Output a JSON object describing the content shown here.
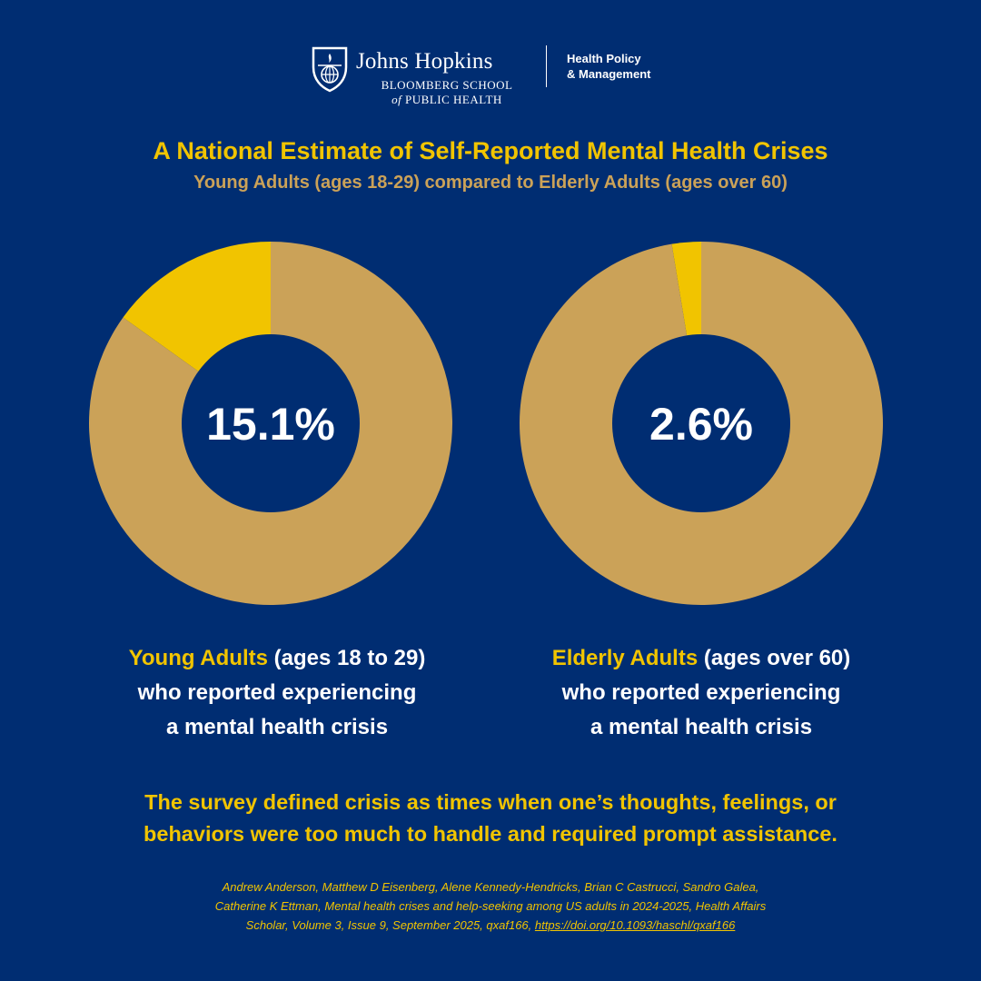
{
  "header": {
    "university": "Johns Hopkins",
    "school_line1": "BLOOMBERG SCHOOL",
    "school_line2_of": "of",
    "school_line2_rest": " PUBLIC HEALTH",
    "dept_line1": "Health Policy",
    "dept_line2": "& Management"
  },
  "title": "A National Estimate of Self-Reported Mental Health Crises",
  "subtitle": "Young Adults (ages 18-29) compared to Elderly Adults (ages over 60)",
  "colors": {
    "background": "#002d72",
    "crisis_slice": "#f1c400",
    "remainder_slice": "#cba258",
    "center_text": "#ffffff"
  },
  "chart_data": [
    {
      "type": "pie",
      "donut": true,
      "slices": [
        {
          "value": 15.1,
          "color": "#f1c400"
        },
        {
          "value": 84.9,
          "color": "#cba258"
        }
      ],
      "center_label": "15.1%"
    },
    {
      "type": "pie",
      "donut": true,
      "slices": [
        {
          "value": 2.6,
          "color": "#f1c400"
        },
        {
          "value": 97.4,
          "color": "#cba258"
        }
      ],
      "center_label": "2.6%"
    }
  ],
  "captions": [
    {
      "highlight": "Young Adults",
      "rest1": " (ages 18 to 29)",
      "line2": "who reported experiencing",
      "line3": "a mental health crisis"
    },
    {
      "highlight": "Elderly Adults",
      "rest1": " (ages over 60)",
      "line2": "who reported experiencing",
      "line3": "a mental health crisis"
    }
  ],
  "note": {
    "line1": "The survey defined crisis as times when one’s thoughts, feelings, or",
    "line2": "behaviors were too much to handle and required prompt assistance."
  },
  "citation": {
    "line1": "Andrew Anderson, Matthew D Eisenberg, Alene Kennedy-Hendricks, Brian C Castrucci, Sandro Galea,",
    "line2": "Catherine K Ettman, Mental health crises and help-seeking among US adults in 2024-2025, Health Affairs",
    "line3": "Scholar, Volume 3, Issue 9, September 2025, qxaf166, ",
    "link": "https://doi.org/10.1093/haschl/qxaf166"
  }
}
